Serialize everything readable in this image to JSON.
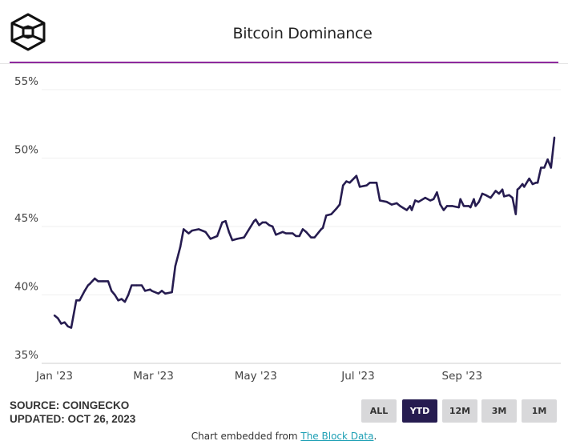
{
  "header": {
    "title": "Bitcoin Dominance",
    "logo": "the-block-cube-logo"
  },
  "colors": {
    "line": "#261c50",
    "accent_rule": "#8e2a9e",
    "active_button": "#261c50",
    "button": "#d8d8da",
    "link": "#1c9fb4"
  },
  "chart_data": {
    "type": "line",
    "title": "Bitcoin Dominance",
    "xlabel": "",
    "ylabel": "",
    "ylim": [
      35,
      55
    ],
    "xlim": [
      "2023-01-01",
      "2023-10-26"
    ],
    "grid": true,
    "legend": "none",
    "y_ticks": [
      "35%",
      "40%",
      "45%",
      "50%",
      "55%"
    ],
    "y_tick_values": [
      35,
      40,
      45,
      50,
      55
    ],
    "x_ticks": [
      "Jan '23",
      "Mar '23",
      "May '23",
      "Jul '23",
      "Sep '23"
    ],
    "x_tick_dates": [
      "2023-01-01",
      "2023-03-01",
      "2023-05-01",
      "2023-07-01",
      "2023-09-01"
    ],
    "series": [
      {
        "x": [
          "2023-01-01",
          "2023-01-03",
          "2023-01-05",
          "2023-01-07",
          "2023-01-09",
          "2023-01-11",
          "2023-01-14",
          "2023-01-16",
          "2023-01-19",
          "2023-01-21",
          "2023-01-22",
          "2023-01-25",
          "2023-01-27",
          "2023-01-30",
          "2023-02-02",
          "2023-02-04",
          "2023-02-06",
          "2023-02-08",
          "2023-02-10",
          "2023-02-12",
          "2023-02-14",
          "2023-02-16",
          "2023-02-19",
          "2023-02-22",
          "2023-02-24",
          "2023-02-27",
          "2023-02-28",
          "2023-03-04",
          "2023-03-06",
          "2023-03-08",
          "2023-03-12",
          "2023-03-14",
          "2023-03-17",
          "2023-03-19",
          "2023-03-22",
          "2023-03-24",
          "2023-03-28",
          "2023-04-01",
          "2023-04-04",
          "2023-04-08",
          "2023-04-11",
          "2023-04-13",
          "2023-04-15",
          "2023-04-17",
          "2023-04-20",
          "2023-04-24",
          "2023-04-28",
          "2023-04-30",
          "2023-05-01",
          "2023-05-03",
          "2023-05-05",
          "2023-05-07",
          "2023-05-09",
          "2023-05-11",
          "2023-05-13",
          "2023-05-17",
          "2023-05-19",
          "2023-05-23",
          "2023-05-25",
          "2023-05-27",
          "2023-05-29",
          "2023-05-31",
          "2023-06-03",
          "2023-06-05",
          "2023-06-09",
          "2023-06-10",
          "2023-06-12",
          "2023-06-15",
          "2023-06-18",
          "2023-06-20",
          "2023-06-22",
          "2023-06-24",
          "2023-06-26",
          "2023-06-30",
          "2023-07-02",
          "2023-07-06",
          "2023-07-08",
          "2023-07-12",
          "2023-07-14",
          "2023-07-18",
          "2023-07-21",
          "2023-07-24",
          "2023-07-26",
          "2023-07-30",
          "2023-08-01",
          "2023-08-02",
          "2023-08-04",
          "2023-08-06",
          "2023-08-10",
          "2023-08-13",
          "2023-08-15",
          "2023-08-17",
          "2023-08-19",
          "2023-08-21",
          "2023-08-23",
          "2023-08-26",
          "2023-08-30",
          "2023-08-31",
          "2023-09-02",
          "2023-09-05",
          "2023-09-06",
          "2023-09-08",
          "2023-09-09",
          "2023-09-11",
          "2023-09-13",
          "2023-09-15",
          "2023-09-18",
          "2023-09-21",
          "2023-09-23",
          "2023-09-25",
          "2023-09-26",
          "2023-09-29",
          "2023-10-01",
          "2023-10-03",
          "2023-10-04",
          "2023-10-05",
          "2023-10-07",
          "2023-10-08",
          "2023-10-11",
          "2023-10-13",
          "2023-10-15",
          "2023-10-16",
          "2023-10-18",
          "2023-10-20",
          "2023-10-22",
          "2023-10-24",
          "2023-10-26"
        ],
        "y": [
          38.5,
          38.3,
          37.9,
          38.0,
          37.7,
          37.6,
          39.6,
          39.6,
          40.3,
          40.7,
          40.8,
          41.2,
          41.0,
          41.0,
          41.0,
          40.3,
          40.0,
          39.6,
          39.7,
          39.5,
          40.0,
          40.7,
          40.7,
          40.7,
          40.3,
          40.4,
          40.3,
          40.1,
          40.3,
          40.1,
          40.2,
          42.1,
          43.5,
          44.8,
          44.5,
          44.7,
          44.8,
          44.6,
          44.1,
          44.3,
          45.3,
          45.4,
          44.6,
          44.0,
          44.1,
          44.2,
          45.0,
          45.4,
          45.5,
          45.1,
          45.3,
          45.3,
          45.1,
          45.0,
          44.4,
          44.6,
          44.5,
          44.5,
          44.3,
          44.3,
          44.8,
          44.6,
          44.2,
          44.2,
          44.8,
          44.9,
          45.8,
          45.9,
          46.3,
          46.6,
          48.0,
          48.3,
          48.2,
          48.7,
          47.9,
          48.0,
          48.2,
          48.2,
          46.9,
          46.8,
          46.6,
          46.7,
          46.5,
          46.2,
          46.5,
          46.2,
          46.9,
          46.8,
          47.1,
          46.9,
          47.0,
          47.5,
          46.6,
          46.2,
          46.5,
          46.5,
          46.4,
          47.0,
          46.5,
          46.5,
          46.4,
          47.0,
          46.5,
          46.8,
          47.4,
          47.3,
          47.1,
          47.6,
          47.4,
          47.7,
          47.2,
          47.3,
          47.1,
          45.9,
          47.7,
          47.8,
          48.1,
          47.9,
          48.5,
          48.1,
          48.2,
          48.2,
          49.3,
          49.3,
          49.9,
          49.3,
          51.5
        ]
      }
    ]
  },
  "footer": {
    "source": "SOURCE: COINGECKO",
    "updated": "UPDATED: OCT 26, 2023",
    "embed_prefix": "Chart embedded from ",
    "embed_link": "The Block Data",
    "embed_suffix": "."
  },
  "range_buttons": [
    {
      "label": "ALL",
      "active": false
    },
    {
      "label": "YTD",
      "active": true
    },
    {
      "label": "12M",
      "active": false
    },
    {
      "label": "3M",
      "active": false
    },
    {
      "label": "1M",
      "active": false
    }
  ]
}
